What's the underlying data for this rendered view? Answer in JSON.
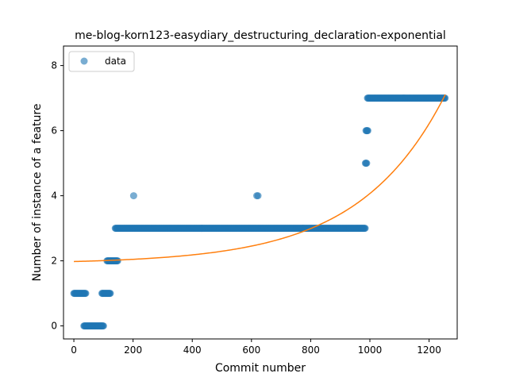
{
  "chart_data": {
    "type": "scatter",
    "title": "me-blog-korn123-easydiary_destructuring_declaration-exponential",
    "xlabel": "Commit number",
    "ylabel": "Number of instance of a feature",
    "xlim": [
      -35,
      1295
    ],
    "ylim": [
      -0.4,
      8.6
    ],
    "xticks": [
      0,
      200,
      400,
      600,
      800,
      1000,
      1200
    ],
    "yticks": [
      0,
      2,
      4,
      6,
      8
    ],
    "grid": false,
    "legend": {
      "position": "top-left",
      "entries": [
        "data"
      ]
    },
    "colors": {
      "data": "#1f77b4",
      "fit": "#ff7f0e"
    },
    "series": [
      {
        "name": "data",
        "kind": "scatter",
        "segments": [
          {
            "x_start": 0,
            "x_end": 40,
            "y": 1
          },
          {
            "x_start": 34,
            "x_end": 100,
            "y": 0
          },
          {
            "x_start": 95,
            "x_end": 123,
            "y": 1
          },
          {
            "x_start": 112,
            "x_end": 148,
            "y": 2
          },
          {
            "x_start": 140,
            "x_end": 985,
            "y": 3
          },
          {
            "x_start": 985,
            "x_end": 990,
            "y": 5
          },
          {
            "x_start": 987,
            "x_end": 993,
            "y": 6
          },
          {
            "x_start": 992,
            "x_end": 1255,
            "y": 7
          }
        ],
        "points": [
          {
            "x": 202,
            "y": 4
          },
          {
            "x": 618,
            "y": 4
          },
          {
            "x": 622,
            "y": 4
          }
        ]
      },
      {
        "kind": "line",
        "fit": {
          "form": "a*exp(b*x)+c",
          "a": 0.0685,
          "b": 0.00345,
          "c": 1.91
        },
        "x_range": [
          0,
          1255
        ]
      }
    ]
  }
}
